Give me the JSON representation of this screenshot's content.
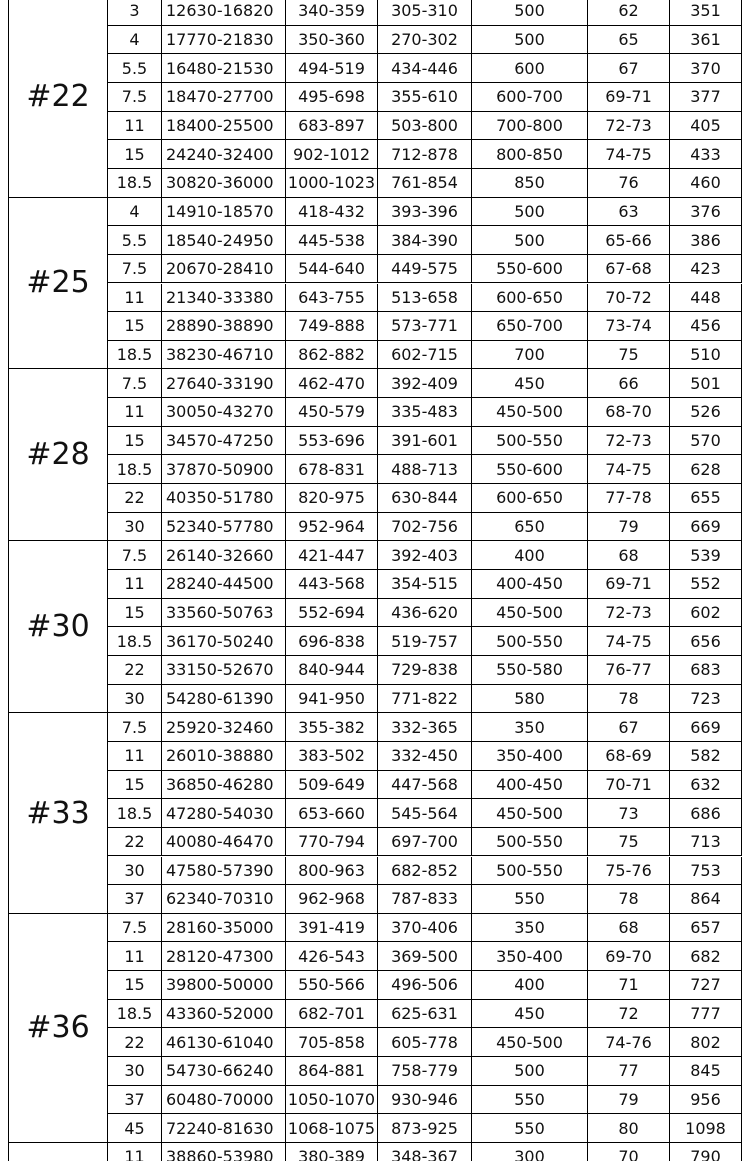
{
  "groups": [
    {
      "label": "#22",
      "rows": [
        [
          "3",
          "12630-16820",
          "340-359",
          "305-310",
          "500",
          "62",
          "351"
        ],
        [
          "4",
          "17770-21830",
          "350-360",
          "270-302",
          "500",
          "65",
          "361"
        ],
        [
          "5.5",
          "16480-21530",
          "494-519",
          "434-446",
          "600",
          "67",
          "370"
        ],
        [
          "7.5",
          "18470-27700",
          "495-698",
          "355-610",
          "600-700",
          "69-71",
          "377"
        ],
        [
          "11",
          "18400-25500",
          "683-897",
          "503-800",
          "700-800",
          "72-73",
          "405"
        ],
        [
          "15",
          "24240-32400",
          "902-1012",
          "712-878",
          "800-850",
          "74-75",
          "433"
        ],
        [
          "18.5",
          "30820-36000",
          "1000-1023",
          "761-854",
          "850",
          "76",
          "460"
        ]
      ]
    },
    {
      "label": "#25",
      "rows": [
        [
          "4",
          "14910-18570",
          "418-432",
          "393-396",
          "500",
          "63",
          "376"
        ],
        [
          "5.5",
          "18540-24950",
          "445-538",
          "384-390",
          "500",
          "65-66",
          "386"
        ],
        [
          "7.5",
          "20670-28410",
          "544-640",
          "449-575",
          "550-600",
          "67-68",
          "423"
        ],
        [
          "11",
          "21340-33380",
          "643-755",
          "513-658",
          "600-650",
          "70-72",
          "448"
        ],
        [
          "15",
          "28890-38890",
          "749-888",
          "573-771",
          "650-700",
          "73-74",
          "456"
        ],
        [
          "18.5",
          "38230-46710",
          "862-882",
          "602-715",
          "700",
          "75",
          "510"
        ]
      ]
    },
    {
      "label": "#28",
      "rows": [
        [
          "7.5",
          "27640-33190",
          "462-470",
          "392-409",
          "450",
          "66",
          "501"
        ],
        [
          "11",
          "30050-43270",
          "450-579",
          "335-483",
          "450-500",
          "68-70",
          "526"
        ],
        [
          "15",
          "34570-47250",
          "553-696",
          "391-601",
          "500-550",
          "72-73",
          "570"
        ],
        [
          "18.5",
          "37870-50900",
          "678-831",
          "488-713",
          "550-600",
          "74-75",
          "628"
        ],
        [
          "22",
          "40350-51780",
          "820-975",
          "630-844",
          "600-650",
          "77-78",
          "655"
        ],
        [
          "30",
          "52340-57780",
          "952-964",
          "702-756",
          "650",
          "79",
          "669"
        ]
      ]
    },
    {
      "label": "#30",
      "rows": [
        [
          "7.5",
          "26140-32660",
          "421-447",
          "392-403",
          "400",
          "68",
          "539"
        ],
        [
          "11",
          "28240-44500",
          "443-568",
          "354-515",
          "400-450",
          "69-71",
          "552"
        ],
        [
          "15",
          "33560-50763",
          "552-694",
          "436-620",
          "450-500",
          "72-73",
          "602"
        ],
        [
          "18.5",
          "36170-50240",
          "696-838",
          "519-757",
          "500-550",
          "74-75",
          "656"
        ],
        [
          "22",
          "33150-52670",
          "840-944",
          "729-838",
          "550-580",
          "76-77",
          "683"
        ],
        [
          "30",
          "54280-61390",
          "941-950",
          "771-822",
          "580",
          "78",
          "723"
        ]
      ]
    },
    {
      "label": "#33",
      "rows": [
        [
          "7.5",
          "25920-32460",
          "355-382",
          "332-365",
          "350",
          "67",
          "669"
        ],
        [
          "11",
          "26010-38880",
          "383-502",
          "332-450",
          "350-400",
          "68-69",
          "582"
        ],
        [
          "15",
          "36850-46280",
          "509-649",
          "447-568",
          "400-450",
          "70-71",
          "632"
        ],
        [
          "18.5",
          "47280-54030",
          "653-660",
          "545-564",
          "450-500",
          "73",
          "686"
        ],
        [
          "22",
          "40080-46470",
          "770-794",
          "697-700",
          "500-550",
          "75",
          "713"
        ],
        [
          "30",
          "47580-57390",
          "800-963",
          "682-852",
          "500-550",
          "75-76",
          "753"
        ],
        [
          "37",
          "62340-70310",
          "962-968",
          "787-833",
          "550",
          "78",
          "864"
        ]
      ]
    },
    {
      "label": "#36",
      "rows": [
        [
          "7.5",
          "28160-35000",
          "391-419",
          "370-406",
          "350",
          "68",
          "657"
        ],
        [
          "11",
          "28120-47300",
          "426-543",
          "369-500",
          "350-400",
          "69-70",
          "682"
        ],
        [
          "15",
          "39800-50000",
          "550-566",
          "496-506",
          "400",
          "71",
          "727"
        ],
        [
          "18.5",
          "43360-52000",
          "682-701",
          "625-631",
          "450",
          "72",
          "777"
        ],
        [
          "22",
          "46130-61040",
          "705-858",
          "605-778",
          "450-500",
          "74-76",
          "802"
        ],
        [
          "30",
          "54730-66240",
          "864-881",
          "758-779",
          "500",
          "77",
          "845"
        ],
        [
          "37",
          "60480-70000",
          "1050-1070",
          "930-946",
          "550",
          "79",
          "956"
        ],
        [
          "45",
          "72240-81630",
          "1068-1075",
          "873-925",
          "550",
          "80",
          "1098"
        ]
      ]
    },
    {
      "rows": [
        [
          "11",
          "38860-53980",
          "380-389",
          "348-367",
          "300",
          "70",
          "790"
        ]
      ]
    }
  ]
}
